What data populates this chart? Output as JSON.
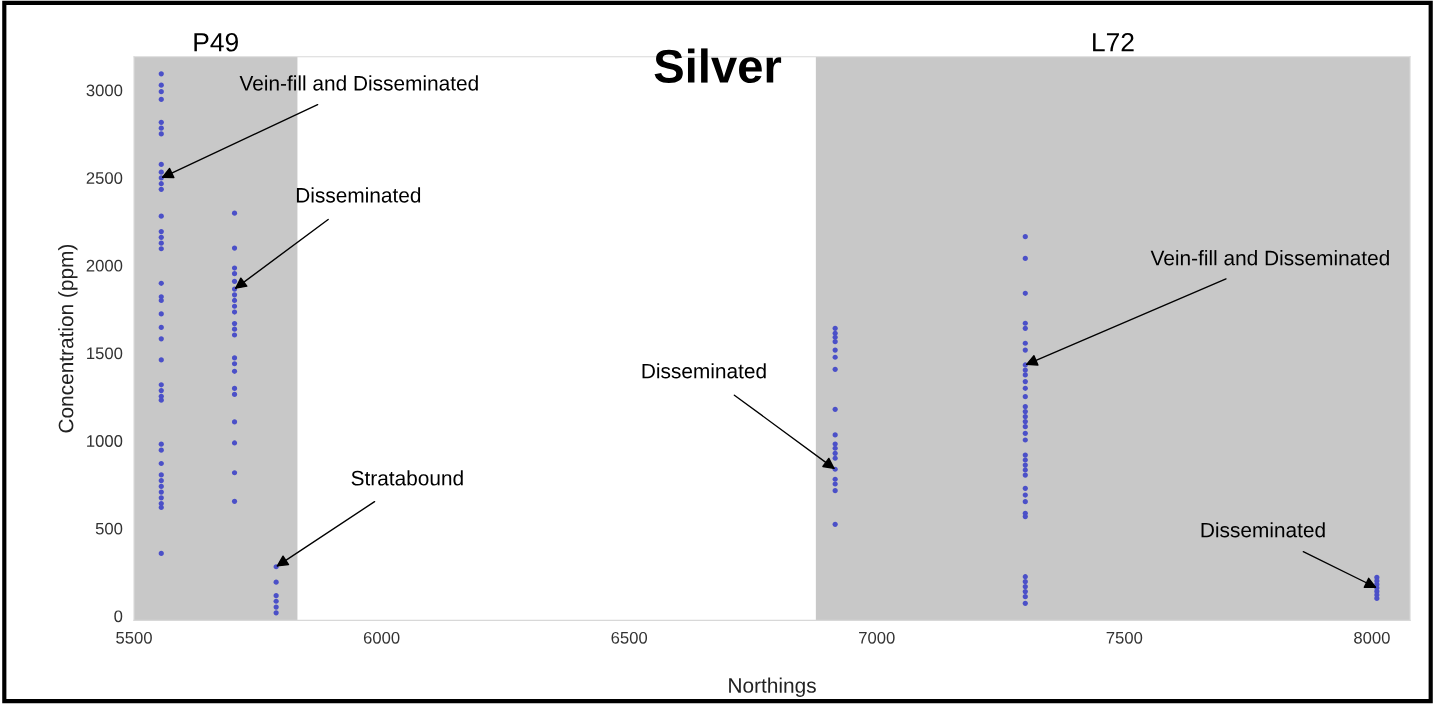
{
  "chart_data": {
    "type": "scatter",
    "title": "Silver",
    "xlabel": "Northings",
    "ylabel": "Concentration (ppm)",
    "xlim": [
      5500,
      8077
    ],
    "ylim": [
      -25,
      3190
    ],
    "xticks": [
      5500,
      6000,
      6500,
      7000,
      7500,
      8000
    ],
    "yticks": [
      0,
      500,
      1000,
      1500,
      2000,
      2500,
      3000
    ],
    "grid": false,
    "marker": "circle",
    "series": [
      {
        "color": "#4b50c8",
        "x": [
          5555,
          5555,
          5555,
          5555,
          5555,
          5555,
          5555,
          5555,
          5555,
          5555,
          5555,
          5555,
          5555,
          5555,
          5555,
          5555,
          5555,
          5555,
          5555,
          5555,
          5555,
          5555,
          5555,
          5555,
          5555,
          5555,
          5555,
          5555,
          5555,
          5555,
          5555,
          5555,
          5555,
          5555,
          5555,
          5555,
          5555,
          5555,
          5555,
          5703,
          5703,
          5703,
          5703,
          5703,
          5703,
          5703,
          5703,
          5703,
          5703,
          5703,
          5703,
          5703,
          5703,
          5703,
          5703,
          5703,
          5703,
          5703,
          5703,
          5703,
          5703,
          5787,
          5787,
          5787,
          5787,
          5787,
          5787
        ],
        "values": [
          3093,
          3028,
          2991,
          2947,
          2816,
          2783,
          2750,
          2576,
          2532,
          2499,
          2466,
          2434,
          2281,
          2193,
          2160,
          2127,
          2095,
          1898,
          1821,
          1800,
          1723,
          1646,
          1581,
          1461,
          1319,
          1286,
          1253,
          1231,
          980,
          946,
          870,
          805,
          772,
          739,
          707,
          674,
          641,
          619,
          357,
          2298,
          2099,
          1985,
          1953,
          1909,
          1865,
          1832,
          1800,
          1767,
          1734,
          1668,
          1636,
          1603,
          1472,
          1439,
          1396,
          1298,
          1264,
          1107,
          987,
          817,
          654,
          281,
          193,
          116,
          84,
          51,
          18
        ]
      },
      {
        "color": "#4b50c8",
        "x": [
          6916,
          6916,
          6916,
          6916,
          6916,
          6916,
          6916,
          6916,
          6916,
          6916,
          6916,
          6916,
          6916,
          6916,
          6916,
          6916,
          6916,
          6916,
          7300,
          7300,
          7300,
          7300,
          7300,
          7300,
          7300,
          7300,
          7300,
          7300,
          7300,
          7300,
          7300,
          7300,
          7300,
          7300,
          7300,
          7300,
          7300,
          7300,
          7300,
          7300,
          7300,
          7300,
          7300,
          7300,
          7300,
          7300,
          7300,
          7300,
          7300,
          7300,
          7300,
          7300,
          7300,
          7300,
          8010,
          8010,
          8010,
          8010,
          8010,
          8010,
          8010
        ],
        "values": [
          1641,
          1613,
          1590,
          1565,
          1517,
          1476,
          1407,
          1179,
          1033,
          981,
          957,
          928,
          900,
          837,
          780,
          753,
          715,
          523,
          2164,
          2040,
          1841,
          1670,
          1641,
          1556,
          1517,
          1432,
          1403,
          1375,
          1337,
          1299,
          1251,
          1194,
          1166,
          1137,
          1109,
          1080,
          1042,
          1004,
          918,
          890,
          861,
          833,
          804,
          728,
          690,
          652,
          586,
          567,
          224,
          196,
          167,
          139,
          110,
          72,
          220,
          200,
          180,
          160,
          140,
          120,
          100
        ]
      }
    ],
    "bands": [
      {
        "axis": "x",
        "from": 5500,
        "to": 5830,
        "label": "P49",
        "color": "#c8c8c8"
      },
      {
        "axis": "x",
        "from": 6877,
        "to": 8077,
        "label": "L72",
        "color": "#c8c8c8"
      }
    ],
    "annotations": [
      {
        "text": "Vein-fill and Disseminated",
        "x": 5555,
        "y": 2499
      },
      {
        "text": "Disseminated",
        "x": 5703,
        "y": 1865
      },
      {
        "text": "Stratabound",
        "x": 5787,
        "y": 281
      },
      {
        "text": "Disseminated",
        "x": 6916,
        "y": 837
      },
      {
        "text": "Vein-fill and Disseminated",
        "x": 7300,
        "y": 1432
      },
      {
        "text": "Disseminated",
        "x": 8010,
        "y": 160
      }
    ]
  }
}
